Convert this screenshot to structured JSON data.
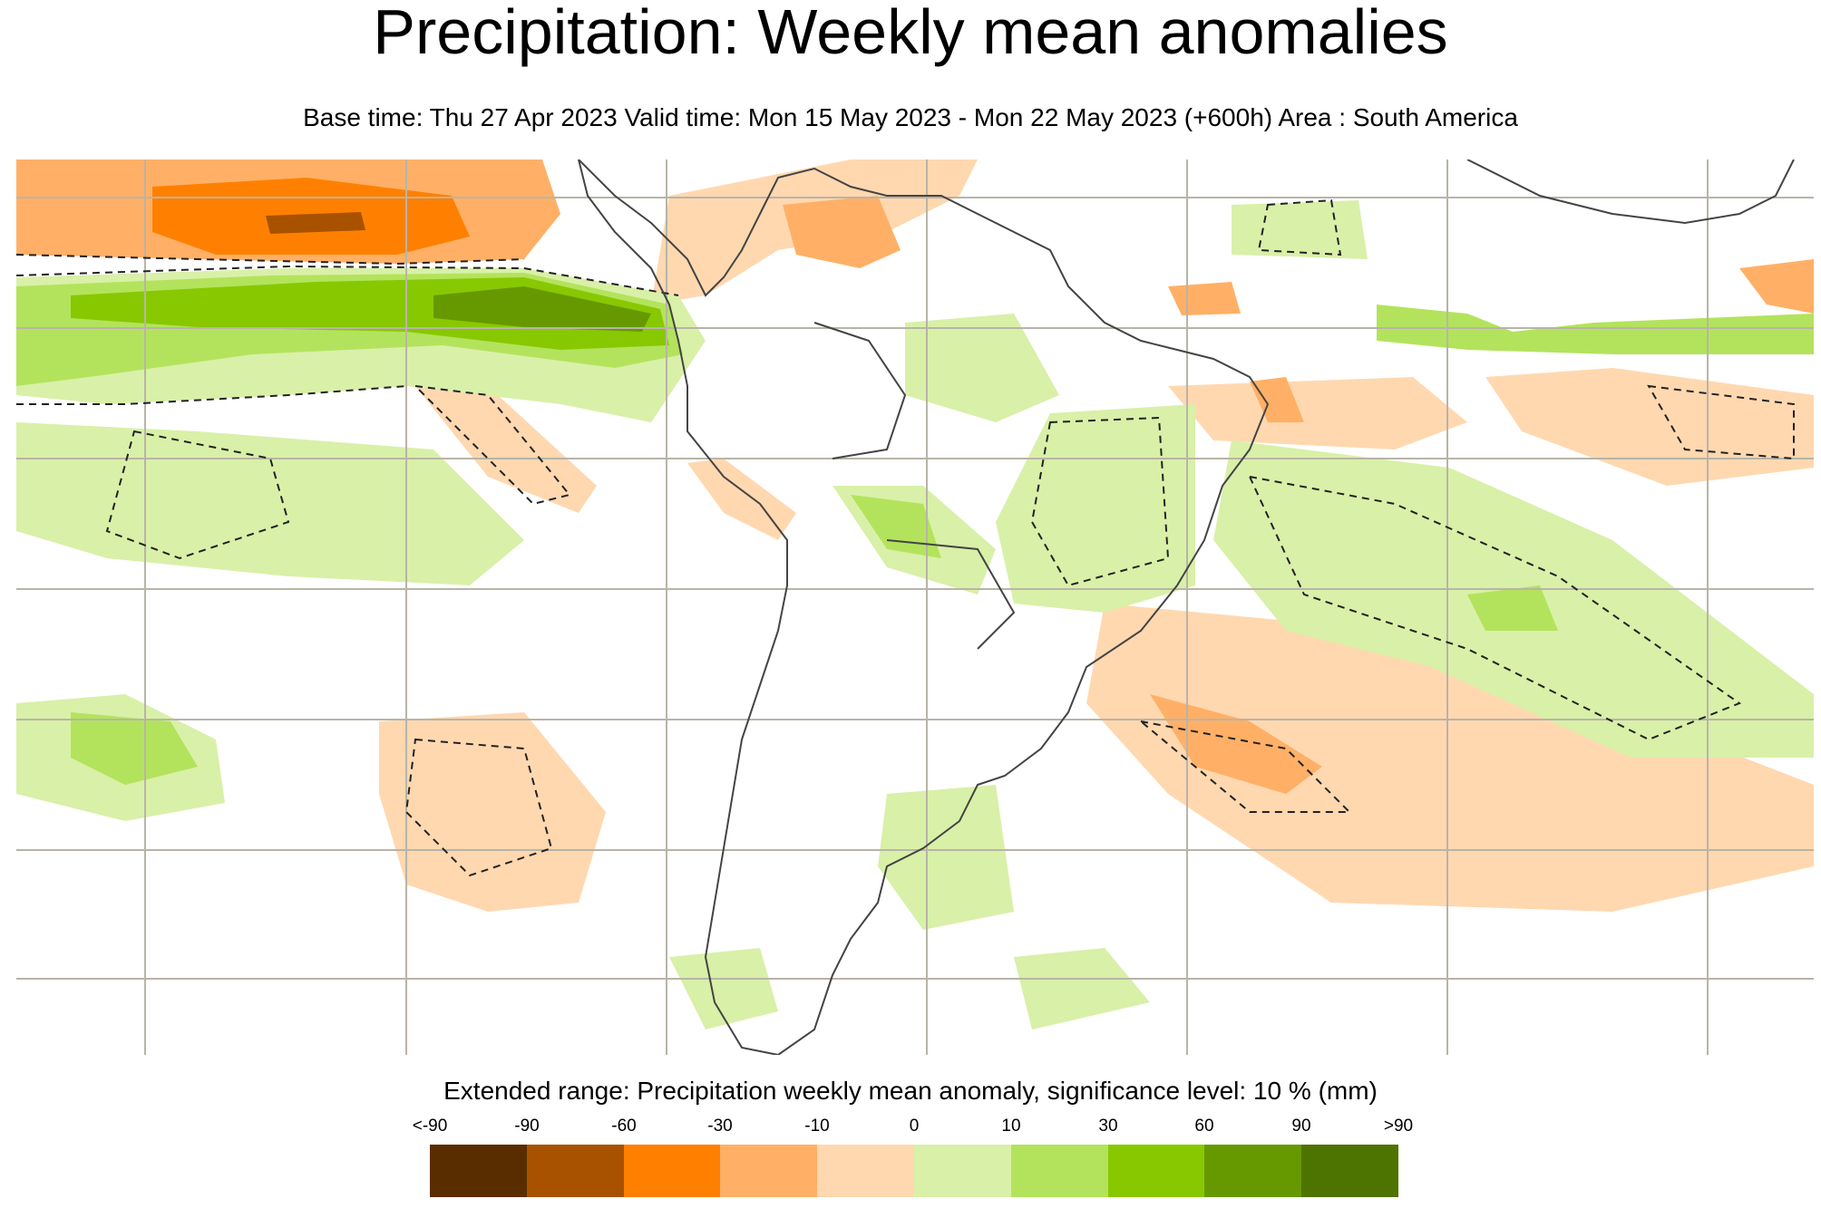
{
  "title": "Precipitation: Weekly mean anomalies",
  "subtitle": "Base time: Thu 27 Apr 2023 Valid time: Mon 15 May 2023 - Mon 22 May 2023 (+600h) Area : South America",
  "legend": {
    "title": "Extended range: Precipitation weekly mean anomaly, significance level: 10 % (mm)",
    "labels": [
      "<-90",
      "-90",
      "-60",
      "-30",
      "-10",
      "0",
      "10",
      "30",
      "60",
      "90",
      ">90"
    ],
    "colors": [
      "#5a2d00",
      "#a85200",
      "#ff8000",
      "#ffb066",
      "#ffd8b0",
      "#d9f0a8",
      "#b3e35c",
      "#88c800",
      "#669900",
      "#4d7300"
    ]
  },
  "map": {
    "area": "South America",
    "land_outline_color": "#444444",
    "grid_color": "#b8b4a8",
    "dashed_contour_color": "#222222"
  }
}
